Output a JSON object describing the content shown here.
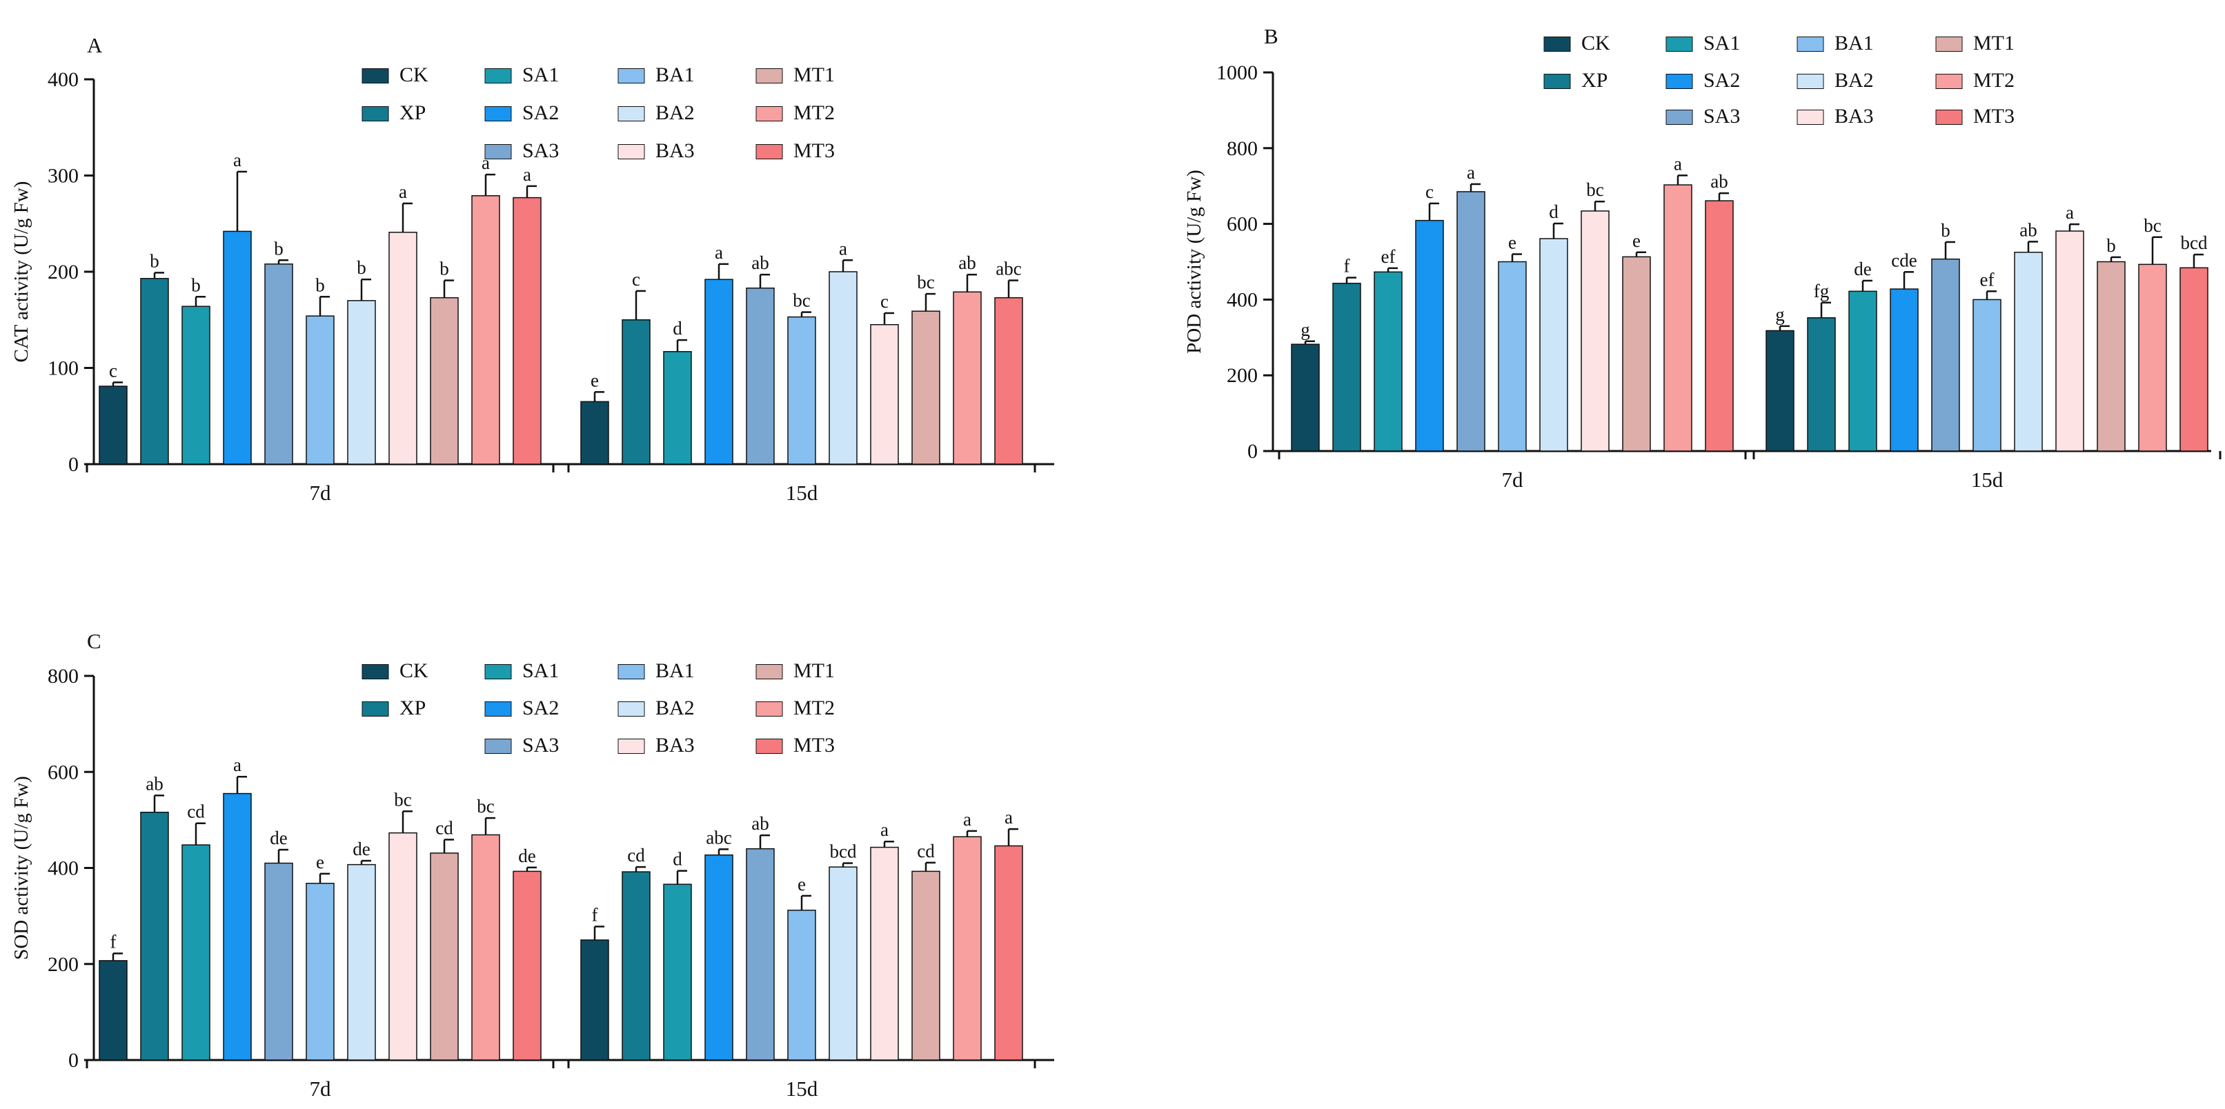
{
  "colors": {
    "CK": "#0e4a5f",
    "XP": "#137a8f",
    "SA1": "#1a9cae",
    "SA2": "#1894f1",
    "SA3": "#7aa6d2",
    "BA1": "#86bff0",
    "BA2": "#cde5f8",
    "BA3": "#fde3e3",
    "MT1": "#ddaeaa",
    "MT2": "#f7a09f",
    "MT3": "#f47a7d"
  },
  "chart_data": [
    {
      "type": "bar",
      "panel": "A",
      "ylabel": "CAT activity (U/g Fw)",
      "ylim": [
        0,
        400
      ],
      "yticks": [
        "0",
        "100",
        "200",
        "300",
        "400"
      ],
      "groups": [
        "7d",
        "15d"
      ],
      "legend": [
        "CK",
        "XP",
        "SA1",
        "SA2",
        "SA3",
        "BA1",
        "BA2",
        "BA3",
        "MT1",
        "MT2",
        "MT3"
      ],
      "series": [
        {
          "name": "CK",
          "values": [
            81,
            65
          ],
          "errors": [
            4,
            10
          ],
          "letters": [
            "c",
            "e"
          ]
        },
        {
          "name": "XP",
          "values": [
            193,
            150
          ],
          "errors": [
            6,
            30
          ],
          "letters": [
            "b",
            "c"
          ]
        },
        {
          "name": "SA1",
          "values": [
            164,
            117
          ],
          "errors": [
            10,
            12
          ],
          "letters": [
            "b",
            "d"
          ]
        },
        {
          "name": "SA2",
          "values": [
            242,
            192
          ],
          "errors": [
            62,
            16
          ],
          "letters": [
            "a",
            "a"
          ]
        },
        {
          "name": "SA3",
          "values": [
            208,
            183
          ],
          "errors": [
            4,
            14
          ],
          "letters": [
            "b",
            "ab"
          ]
        },
        {
          "name": "BA1",
          "values": [
            154,
            153
          ],
          "errors": [
            20,
            5
          ],
          "letters": [
            "b",
            "bc"
          ]
        },
        {
          "name": "BA2",
          "values": [
            170,
            200
          ],
          "errors": [
            22,
            12
          ],
          "letters": [
            "b",
            "a"
          ]
        },
        {
          "name": "BA3",
          "values": [
            241,
            145
          ],
          "errors": [
            30,
            12
          ],
          "letters": [
            "a",
            "c"
          ]
        },
        {
          "name": "MT1",
          "values": [
            173,
            159
          ],
          "errors": [
            18,
            18
          ],
          "letters": [
            "b",
            "bc"
          ]
        },
        {
          "name": "MT2",
          "values": [
            279,
            179
          ],
          "errors": [
            22,
            18
          ],
          "letters": [
            "a",
            "ab"
          ]
        },
        {
          "name": "MT3",
          "values": [
            277,
            173
          ],
          "errors": [
            12,
            18
          ],
          "letters": [
            "a",
            "abc"
          ]
        }
      ]
    },
    {
      "type": "bar",
      "panel": "B",
      "ylabel": "POD activity (U/g Fw)",
      "ylim": [
        0,
        1000
      ],
      "yticks": [
        "0",
        "200",
        "400",
        "600",
        "800",
        "1000"
      ],
      "groups": [
        "7d",
        "15d"
      ],
      "legend": [
        "CK",
        "XP",
        "SA1",
        "SA2",
        "SA3",
        "BA1",
        "BA2",
        "BA3",
        "MT1",
        "MT2",
        "MT3"
      ],
      "series": [
        {
          "name": "CK",
          "values": [
            282,
            318
          ],
          "errors": [
            8,
            12
          ],
          "letters": [
            "g",
            "g"
          ]
        },
        {
          "name": "XP",
          "values": [
            443,
            352
          ],
          "errors": [
            15,
            40
          ],
          "letters": [
            "f",
            "fg"
          ]
        },
        {
          "name": "SA1",
          "values": [
            473,
            422
          ],
          "errors": [
            10,
            28
          ],
          "letters": [
            "ef",
            "de"
          ]
        },
        {
          "name": "SA2",
          "values": [
            609,
            428
          ],
          "errors": [
            45,
            45
          ],
          "letters": [
            "c",
            "cde"
          ]
        },
        {
          "name": "SA3",
          "values": [
            685,
            507
          ],
          "errors": [
            20,
            45
          ],
          "letters": [
            "a",
            "b"
          ]
        },
        {
          "name": "BA1",
          "values": [
            500,
            400
          ],
          "errors": [
            20,
            22
          ],
          "letters": [
            "e",
            "ef"
          ]
        },
        {
          "name": "BA2",
          "values": [
            561,
            525
          ],
          "errors": [
            40,
            28
          ],
          "letters": [
            "d",
            "ab"
          ]
        },
        {
          "name": "BA3",
          "values": [
            634,
            581
          ],
          "errors": [
            25,
            18
          ],
          "letters": [
            "bc",
            "a"
          ]
        },
        {
          "name": "MT1",
          "values": [
            513,
            500
          ],
          "errors": [
            12,
            12
          ],
          "letters": [
            "e",
            "b"
          ]
        },
        {
          "name": "MT2",
          "values": [
            703,
            493
          ],
          "errors": [
            25,
            72
          ],
          "letters": [
            "a",
            "bc"
          ]
        },
        {
          "name": "MT3",
          "values": [
            661,
            484
          ],
          "errors": [
            20,
            35
          ],
          "letters": [
            "ab",
            "bcd"
          ]
        }
      ]
    },
    {
      "type": "bar",
      "panel": "C",
      "ylabel": "SOD activity (U/g Fw)",
      "ylim": [
        0,
        800
      ],
      "yticks": [
        "0",
        "200",
        "400",
        "600",
        "800"
      ],
      "groups": [
        "7d",
        "15d"
      ],
      "legend": [
        "CK",
        "XP",
        "SA1",
        "SA2",
        "SA3",
        "BA1",
        "BA2",
        "BA3",
        "MT1",
        "MT2",
        "MT3"
      ],
      "series": [
        {
          "name": "CK",
          "values": [
            207,
            250
          ],
          "errors": [
            15,
            28
          ],
          "letters": [
            "f",
            "f"
          ]
        },
        {
          "name": "XP",
          "values": [
            516,
            392
          ],
          "errors": [
            35,
            10
          ],
          "letters": [
            "ab",
            "cd"
          ]
        },
        {
          "name": "SA1",
          "values": [
            448,
            366
          ],
          "errors": [
            45,
            28
          ],
          "letters": [
            "cd",
            "d"
          ]
        },
        {
          "name": "SA2",
          "values": [
            555,
            427
          ],
          "errors": [
            35,
            12
          ],
          "letters": [
            "a",
            "abc"
          ]
        },
        {
          "name": "SA3",
          "values": [
            410,
            440
          ],
          "errors": [
            28,
            28
          ],
          "letters": [
            "de",
            "ab"
          ]
        },
        {
          "name": "BA1",
          "values": [
            368,
            312
          ],
          "errors": [
            20,
            30
          ],
          "letters": [
            "e",
            "e"
          ]
        },
        {
          "name": "BA2",
          "values": [
            407,
            402
          ],
          "errors": [
            8,
            8
          ],
          "letters": [
            "de",
            "bcd"
          ]
        },
        {
          "name": "BA3",
          "values": [
            473,
            443
          ],
          "errors": [
            45,
            12
          ],
          "letters": [
            "bc",
            "a"
          ]
        },
        {
          "name": "MT1",
          "values": [
            431,
            393
          ],
          "errors": [
            28,
            18
          ],
          "letters": [
            "cd",
            "cd"
          ]
        },
        {
          "name": "MT2",
          "values": [
            469,
            465
          ],
          "errors": [
            35,
            12
          ],
          "letters": [
            "bc",
            "a"
          ]
        },
        {
          "name": "MT3",
          "values": [
            393,
            446
          ],
          "errors": [
            8,
            35
          ],
          "letters": [
            "de",
            "a"
          ]
        }
      ]
    }
  ]
}
